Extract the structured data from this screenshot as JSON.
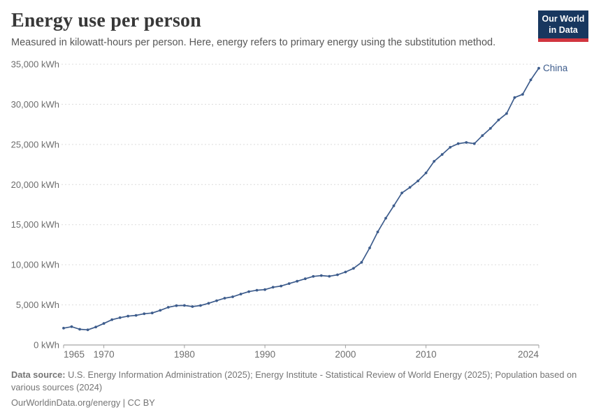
{
  "header": {
    "title": "Energy use per person",
    "subtitle": "Measured in kilowatt-hours per person. Here, energy refers to primary energy using the substitution method."
  },
  "logo": {
    "line1": "Our World",
    "line2": "in Data",
    "bg_color": "#18375f",
    "bar_color": "#d1353f"
  },
  "chart_data": {
    "type": "line",
    "title": "Energy use per person",
    "unit": "kWh",
    "xlabel": "",
    "ylabel": "",
    "grid": "dashed-horizontal",
    "legend_position": "end-of-line-label",
    "x_range": [
      1965,
      2024
    ],
    "y_range": [
      0,
      35000
    ],
    "y_ticks": [
      {
        "value": 0,
        "label": "0 kWh"
      },
      {
        "value": 5000,
        "label": "5,000 kWh"
      },
      {
        "value": 10000,
        "label": "10,000 kWh"
      },
      {
        "value": 15000,
        "label": "15,000 kWh"
      },
      {
        "value": 20000,
        "label": "20,000 kWh"
      },
      {
        "value": 25000,
        "label": "25,000 kWh"
      },
      {
        "value": 30000,
        "label": "30,000 kWh"
      },
      {
        "value": 35000,
        "label": "35,000 kWh"
      }
    ],
    "x_ticks": [
      {
        "value": 1965,
        "label": "1965",
        "align": "start"
      },
      {
        "value": 1970,
        "label": "1970",
        "align": "middle"
      },
      {
        "value": 1980,
        "label": "1980",
        "align": "middle"
      },
      {
        "value": 1990,
        "label": "1990",
        "align": "middle"
      },
      {
        "value": 2000,
        "label": "2000",
        "align": "middle"
      },
      {
        "value": 2010,
        "label": "2010",
        "align": "middle"
      },
      {
        "value": 2024,
        "label": "2024",
        "align": "end"
      }
    ],
    "series": [
      {
        "name": "China",
        "color": "#3d5c8c",
        "years": [
          1965,
          1966,
          1967,
          1968,
          1969,
          1970,
          1971,
          1972,
          1973,
          1974,
          1975,
          1976,
          1977,
          1978,
          1979,
          1980,
          1981,
          1982,
          1983,
          1984,
          1985,
          1986,
          1987,
          1988,
          1989,
          1990,
          1991,
          1992,
          1993,
          1994,
          1995,
          1996,
          1997,
          1998,
          1999,
          2000,
          2001,
          2002,
          2003,
          2004,
          2005,
          2006,
          2007,
          2008,
          2009,
          2010,
          2011,
          2012,
          2013,
          2014,
          2015,
          2016,
          2017,
          2018,
          2019,
          2020,
          2021,
          2022,
          2023,
          2024
        ],
        "values": [
          2100,
          2280,
          1960,
          1890,
          2240,
          2680,
          3150,
          3400,
          3600,
          3690,
          3890,
          3990,
          4320,
          4700,
          4900,
          4930,
          4790,
          4920,
          5200,
          5520,
          5830,
          6010,
          6350,
          6650,
          6830,
          6900,
          7200,
          7350,
          7650,
          7950,
          8250,
          8550,
          8650,
          8570,
          8750,
          9100,
          9550,
          10300,
          12100,
          14100,
          15800,
          17350,
          18950,
          19650,
          20450,
          21450,
          22900,
          23750,
          24650,
          25100,
          25250,
          25100,
          26100,
          27000,
          28050,
          28850,
          30850,
          31250,
          33050,
          34500
        ]
      }
    ],
    "style": {
      "grid_color": "#dcdcdc",
      "axis_color": "#8f8f8f",
      "tick_color": "#a0a0a0",
      "tick_label_color": "#6e6e6e"
    }
  },
  "footer": {
    "source_label": "Data source:",
    "source_text": "U.S. Energy Information Administration (2025); Energy Institute - Statistical Review of World Energy (2025); Population based on various sources (2024)",
    "license_line": "OurWorldinData.org/energy | CC BY"
  }
}
